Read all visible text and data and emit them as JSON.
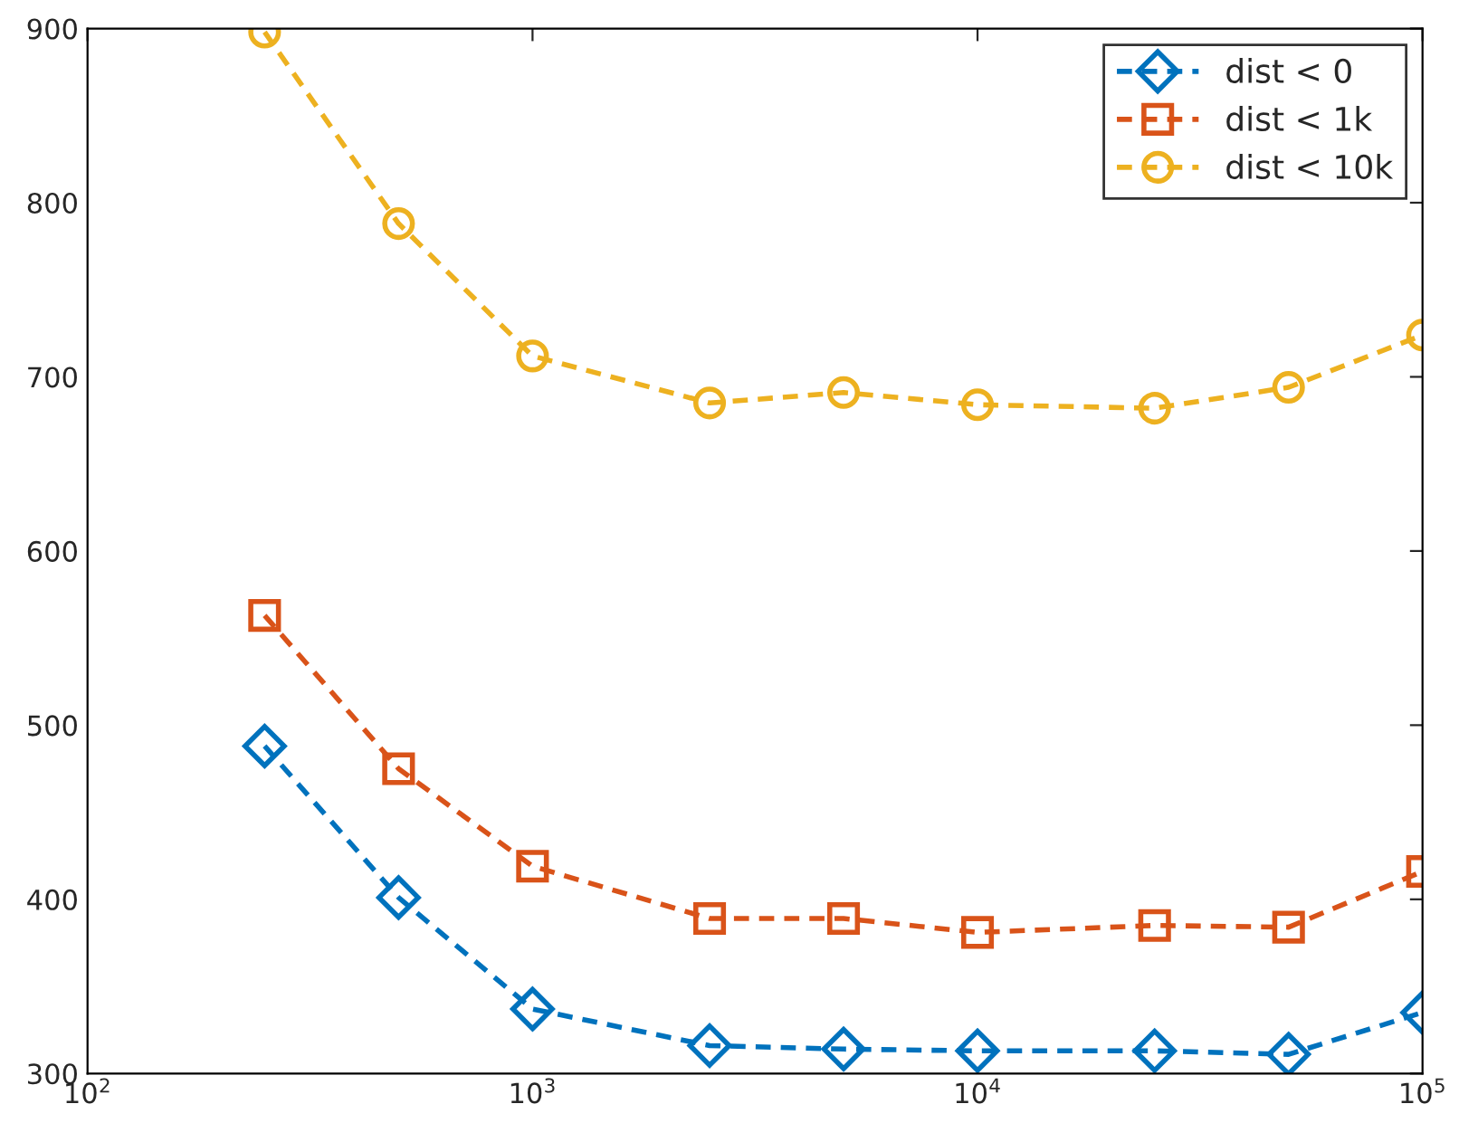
{
  "chart_data": {
    "type": "line",
    "log": "x",
    "line_style": "dashed",
    "legend": "top right",
    "grid": false,
    "xlim": [
      100,
      100000
    ],
    "xticks": [
      {
        "value": 100,
        "label": "10$^{2}$"
      },
      {
        "value": 1000,
        "label": "10$^{3}$"
      },
      {
        "value": 10000,
        "label": "10$^{4}$"
      },
      {
        "value": 100000,
        "label": "10$^{5}$"
      }
    ],
    "ylim": [
      300,
      900
    ],
    "yticks": [
      300,
      400,
      500,
      600,
      700,
      800,
      900
    ],
    "x": [
      250,
      500,
      1000,
      2500,
      5000,
      10000,
      25000,
      50000,
      100000
    ],
    "series": [
      {
        "name": "dist < 0",
        "color": "#0072bd",
        "marker": "diamond",
        "values": [
          488,
          401,
          337,
          316,
          314,
          313,
          313,
          311,
          335
        ]
      },
      {
        "name": "dist < 1k",
        "color": "#d95319",
        "marker": "square",
        "values": [
          563,
          475,
          419,
          389,
          389,
          381,
          385,
          384,
          416
        ]
      },
      {
        "name": "dist < 10k",
        "color": "#edb120",
        "marker": "circle",
        "values": [
          898,
          788,
          712,
          685,
          691,
          684,
          682,
          694,
          724
        ]
      }
    ]
  }
}
